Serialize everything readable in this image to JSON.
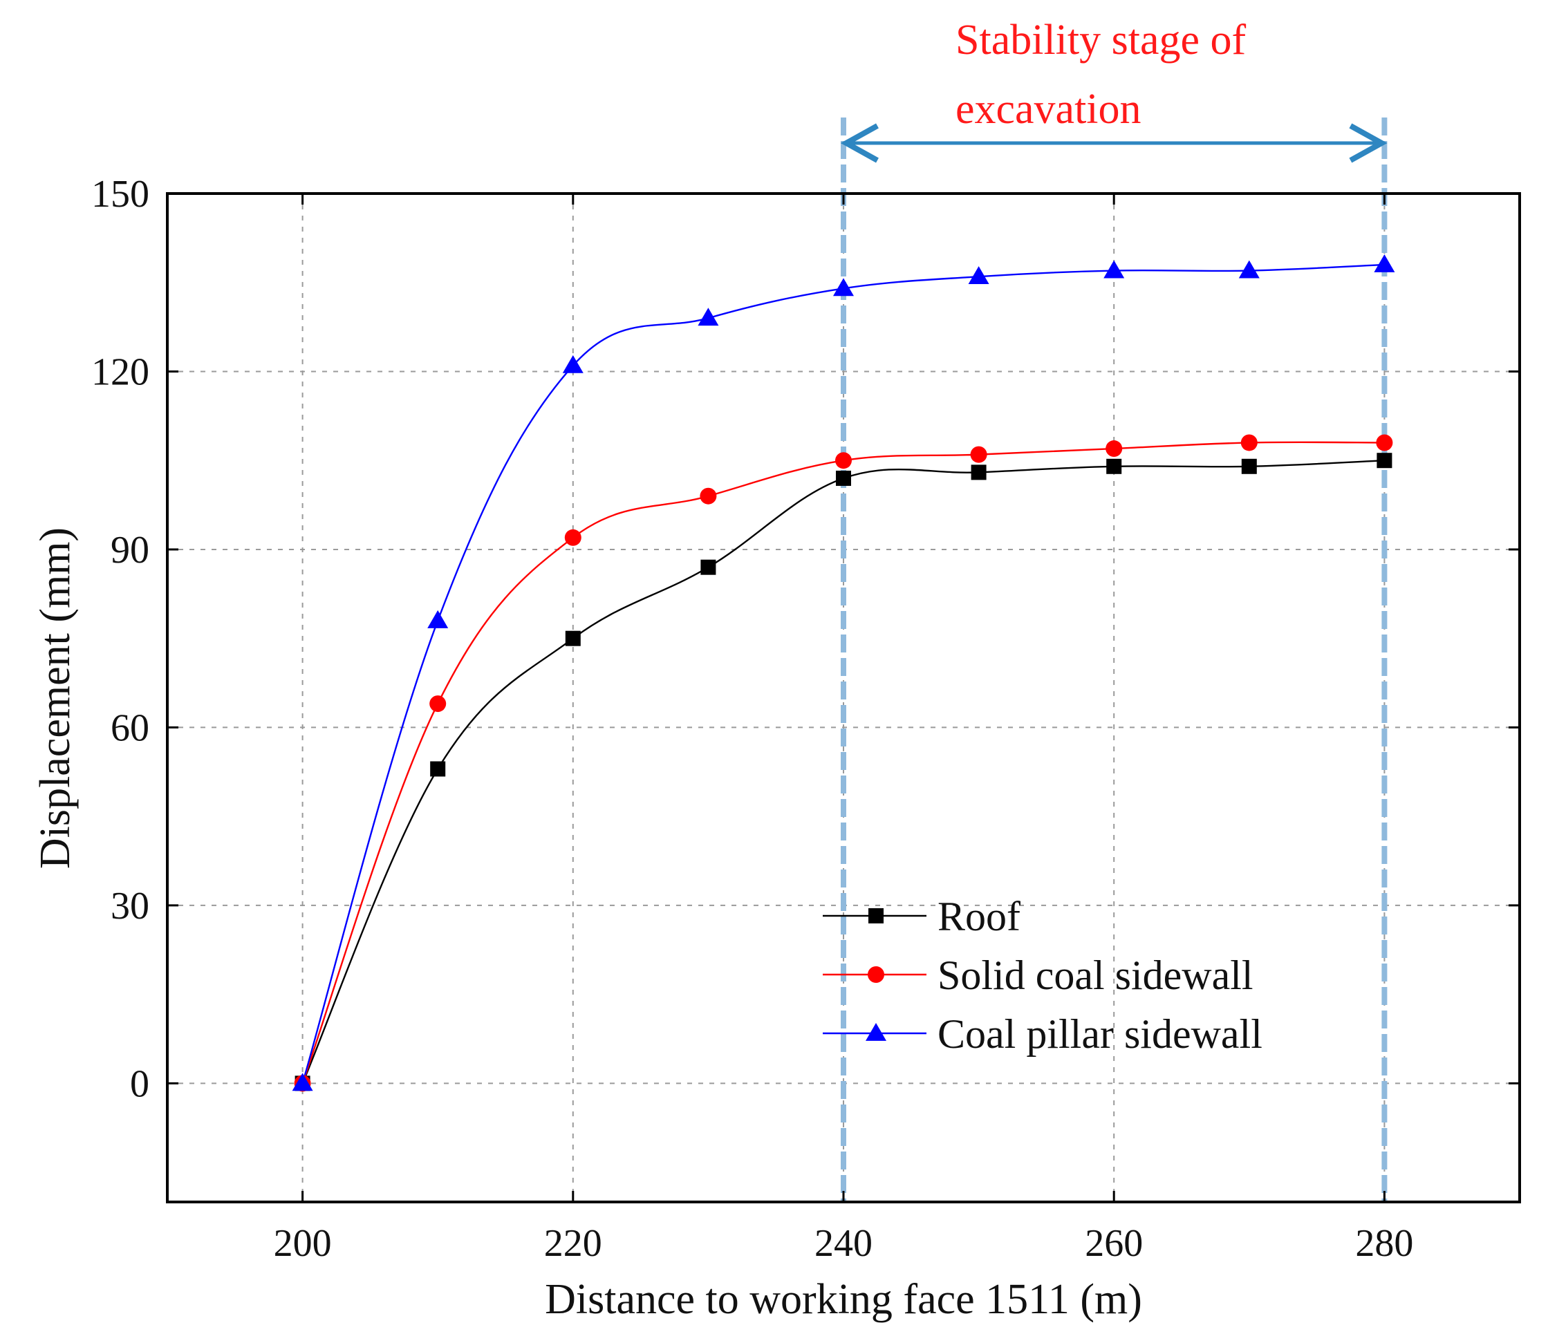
{
  "chart_data": {
    "type": "line",
    "xlabel": "Distance to working face 1511 (m)",
    "ylabel": "Displacement (mm)",
    "xlim": [
      190,
      290
    ],
    "ylim": [
      -20,
      150
    ],
    "xticks": [
      200,
      220,
      240,
      260,
      280
    ],
    "yticks": [
      0,
      30,
      60,
      90,
      120,
      150
    ],
    "grid": true,
    "legend_position": "bottom-center",
    "x": [
      200,
      210,
      220,
      230,
      240,
      250,
      260,
      270,
      280
    ],
    "series": [
      {
        "name": "Roof",
        "color": "#000000",
        "marker": "square",
        "values": [
          0,
          53,
          75,
          87,
          102,
          103,
          104,
          104,
          105
        ]
      },
      {
        "name": "Solid coal sidewall",
        "color": "#ff0000",
        "marker": "circle",
        "values": [
          0,
          64,
          92,
          99,
          105,
          106,
          107,
          108,
          108
        ]
      },
      {
        "name": "Coal pillar sidewall",
        "color": "#0000ff",
        "marker": "triangle",
        "values": [
          0,
          78,
          121,
          129,
          134,
          136,
          137,
          137,
          138
        ]
      }
    ],
    "annotation": {
      "lines": [
        "Stability stage  of",
        "excavation"
      ],
      "x_start": 240,
      "x_end": 280,
      "text_color": "#ff1a1a",
      "arrow_color": "#2e86c1",
      "guide_color": "#8fb9dc"
    }
  }
}
